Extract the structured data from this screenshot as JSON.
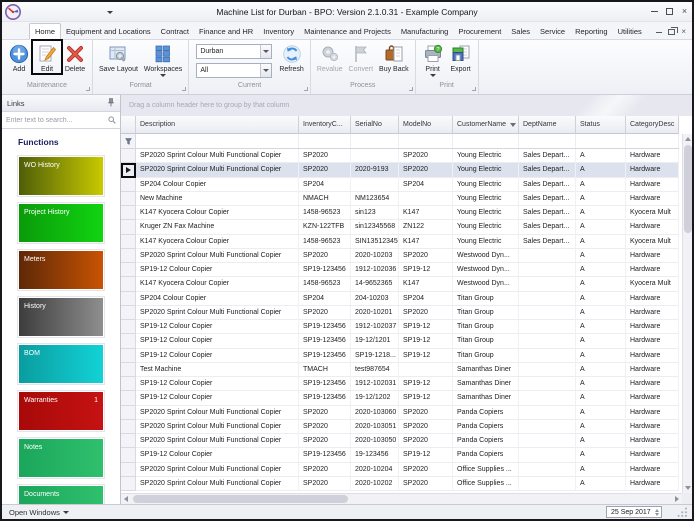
{
  "window": {
    "title": "Machine List for Durban - BPO: Version 2.1.0.31 - Example Company"
  },
  "tabs": {
    "active": "Home",
    "items": [
      "Home",
      "Equipment and Locations",
      "Contract",
      "Finance and HR",
      "Inventory",
      "Maintenance and Projects",
      "Manufacturing",
      "Procurement",
      "Sales",
      "Service",
      "Reporting",
      "Utilities"
    ]
  },
  "ribbon": {
    "groups": {
      "maintenance": "Maintenance",
      "format": "Format",
      "current": "Current",
      "process": "Process",
      "print": "Print"
    },
    "buttons": {
      "add": "Add",
      "edit": "Edit",
      "delete": "Delete",
      "save_layout": "Save Layout",
      "workspaces": "Workspaces",
      "refresh": "Refresh",
      "revalue": "Revalue",
      "convert": "Convert",
      "buy_back": "Buy Back",
      "print": "Print",
      "export": "Export"
    },
    "branch_combo_value": "Durban",
    "filter_combo_value": "All"
  },
  "sidebar": {
    "title": "Links",
    "search_placeholder": "Enter text to search...",
    "section_title": "Functions",
    "tiles": [
      {
        "label": "WO History",
        "badge": "",
        "color_from": "#4f5e08",
        "color_to": "#c8ca00"
      },
      {
        "label": "Project History",
        "badge": "",
        "color_from": "#0a9b0a",
        "color_to": "#11d411"
      },
      {
        "label": "Meters",
        "badge": "",
        "color_from": "#5e2806",
        "color_to": "#c85304"
      },
      {
        "label": "History",
        "badge": "",
        "color_from": "#3d3d3d",
        "color_to": "#8e8e8e"
      },
      {
        "label": "BOM",
        "badge": "",
        "color_from": "#0a9da0",
        "color_to": "#12d2d6"
      },
      {
        "label": "Warranties",
        "badge": "1",
        "color_from": "#a80909",
        "color_to": "#c61212"
      },
      {
        "label": "Notes",
        "badge": "",
        "color_from": "#1ba65b",
        "color_to": "#2fc06d"
      },
      {
        "label": "Documents",
        "badge": "",
        "color_from": "#1ba65b",
        "color_to": "#2fc06d"
      }
    ]
  },
  "grid": {
    "group_hint": "Drag a column header here to group by that column",
    "columns": [
      "Description",
      "InventoryC...",
      "SerialNo",
      "ModelNo",
      "CustomerName",
      "DeptName",
      "Status",
      "CategoryDesc"
    ],
    "sort": {
      "column": "CustomerName",
      "direction": "desc"
    },
    "selected_row_index": 1,
    "rows": [
      [
        "SP2020 Sprint Colour Multi Functional Copier",
        "SP2020",
        "",
        "SP2020",
        "Young Electric",
        "Sales Depart...",
        "A",
        "Hardware"
      ],
      [
        "SP2020 Sprint Colour Multi Functional Copier",
        "SP2020",
        "2020-9193",
        "SP2020",
        "Young Electric",
        "Sales Depart...",
        "A",
        "Hardware"
      ],
      [
        "SP204 Colour Copier",
        "SP204",
        "",
        "SP204",
        "Young Electric",
        "Sales Depart...",
        "A",
        "Hardware"
      ],
      [
        "New Machine",
        "NMACH",
        "NM123654",
        "",
        "Young Electric",
        "Sales Depart...",
        "A",
        "Hardware"
      ],
      [
        "K147 Kyocera Colour Copier",
        "1458-96523",
        "sin123",
        "K147",
        "Young Electric",
        "Sales Depart...",
        "A",
        "Kyocera Mult"
      ],
      [
        "Kruger ZN Fax Machine",
        "KZN-122TFB",
        "sin12345568",
        "ZN122",
        "Young Electric",
        "Sales Depart...",
        "A",
        "Hardware"
      ],
      [
        "K147 Kyocera Colour Copier",
        "1458-96523",
        "SIN13512345",
        "K147",
        "Young Electric",
        "Sales Depart...",
        "A",
        "Kyocera Mult"
      ],
      [
        "SP2020 Sprint Colour Multi Functional Copier",
        "SP2020",
        "2020-10203",
        "SP2020",
        "Westwood Dyn...",
        "",
        "A",
        "Hardware"
      ],
      [
        "SP19-12 Colour Copier",
        "SP19-123456",
        "1912-102036",
        "SP19-12",
        "Westwood Dyn...",
        "",
        "A",
        "Hardware"
      ],
      [
        "K147 Kyocera Colour Copier",
        "1458-96523",
        "14-9652365",
        "K147",
        "Westwood Dyn...",
        "",
        "A",
        "Kyocera Mult"
      ],
      [
        "SP204 Colour Copier",
        "SP204",
        "204-10203",
        "SP204",
        "Titan Group",
        "",
        "A",
        "Hardware"
      ],
      [
        "SP2020 Sprint Colour Multi Functional Copier",
        "SP2020",
        "2020-10201",
        "SP2020",
        "Titan Group",
        "",
        "A",
        "Hardware"
      ],
      [
        "SP19-12 Colour Copier",
        "SP19-123456",
        "1912-102037",
        "SP19-12",
        "Titan Group",
        "",
        "A",
        "Hardware"
      ],
      [
        "SP19-12 Colour Copier",
        "SP19-123456",
        "19-12/1201",
        "SP19-12",
        "Titan Group",
        "",
        "A",
        "Hardware"
      ],
      [
        "SP19-12 Colour Copier",
        "SP19-123456",
        "SP19-1218...",
        "SP19-12",
        "Titan Group",
        "",
        "A",
        "Hardware"
      ],
      [
        "Test Machine",
        "TMACH",
        "test987654",
        "",
        "Samanthas Diner",
        "",
        "A",
        "Hardware"
      ],
      [
        "SP19-12 Colour Copier",
        "SP19-123456",
        "1912-102031",
        "SP19-12",
        "Samanthas Diner",
        "",
        "A",
        "Hardware"
      ],
      [
        "SP19-12 Colour Copier",
        "SP19-123456",
        "19-12/1202",
        "SP19-12",
        "Samanthas Diner",
        "",
        "A",
        "Hardware"
      ],
      [
        "SP2020 Sprint Colour Multi Functional Copier",
        "SP2020",
        "2020-103060",
        "SP2020",
        "Panda Copiers",
        "",
        "A",
        "Hardware"
      ],
      [
        "SP2020 Sprint Colour Multi Functional Copier",
        "SP2020",
        "2020-103051",
        "SP2020",
        "Panda Copiers",
        "",
        "A",
        "Hardware"
      ],
      [
        "SP2020 Sprint Colour Multi Functional Copier",
        "SP2020",
        "2020-103050",
        "SP2020",
        "Panda Copiers",
        "",
        "A",
        "Hardware"
      ],
      [
        "SP19-12 Colour Copier",
        "SP19-123456",
        "19-123456",
        "SP19-12",
        "Panda Copiers",
        "",
        "A",
        "Hardware"
      ],
      [
        "SP2020 Sprint Colour Multi Functional Copier",
        "SP2020",
        "2020-10204",
        "SP2020",
        "Office Supplies ...",
        "",
        "A",
        "Hardware"
      ],
      [
        "SP2020 Sprint Colour Multi Functional Copier",
        "SP2020",
        "2020-10202",
        "SP2020",
        "Office Supplies ...",
        "",
        "A",
        "Hardware"
      ]
    ]
  },
  "statusbar": {
    "open_windows": "Open Windows",
    "date": "25 Sep 2017"
  }
}
